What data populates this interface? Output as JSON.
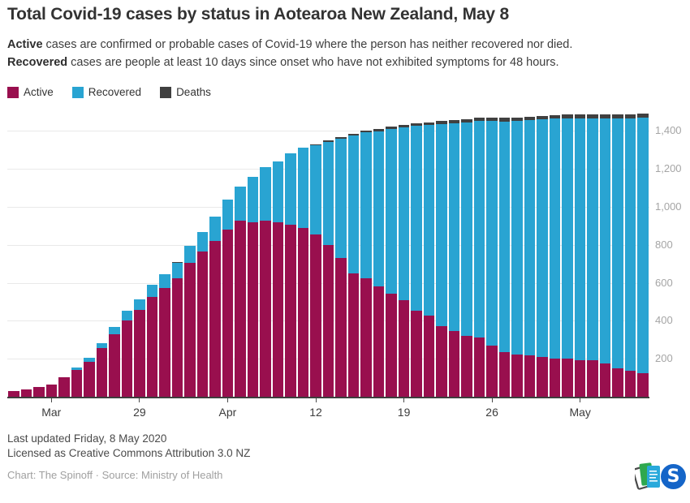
{
  "header": {
    "title": "Total Covid-19 cases by status in Aotearoa New Zealand, May 8",
    "description": [
      {
        "bold": "Active",
        "rest": " cases are confirmed or probable cases of Covid-19 where the person has neither recovered nor died."
      },
      {
        "bold": "Recovered",
        "rest": " cases are people at least 10 days since onset who have not exhibited symptoms for 48 hours."
      }
    ]
  },
  "legend": {
    "items": [
      {
        "label": "Active",
        "color": "#990f4e"
      },
      {
        "label": "Recovered",
        "color": "#29a4d2"
      },
      {
        "label": "Deaths",
        "color": "#404040"
      }
    ]
  },
  "chart_data": {
    "type": "bar",
    "stacked": true,
    "title": "Total Covid-19 cases by status in Aotearoa New Zealand, May 8",
    "x": [
      "Mar 19",
      "Mar 20",
      "Mar 21",
      "Mar 22",
      "Mar 23",
      "Mar 24",
      "Mar 25",
      "Mar 26",
      "Mar 27",
      "Mar 28",
      "Mar 29",
      "Mar 30",
      "Mar 31",
      "Apr 1",
      "Apr 2",
      "Apr 3",
      "Apr 4",
      "Apr 5",
      "Apr 6",
      "Apr 7",
      "Apr 8",
      "Apr 9",
      "Apr 10",
      "Apr 11",
      "Apr 12",
      "Apr 13",
      "Apr 14",
      "Apr 15",
      "Apr 16",
      "Apr 17",
      "Apr 18",
      "Apr 19",
      "Apr 20",
      "Apr 21",
      "Apr 22",
      "Apr 23",
      "Apr 24",
      "Apr 25",
      "Apr 26",
      "Apr 27",
      "Apr 28",
      "Apr 29",
      "Apr 30",
      "May 1",
      "May 2",
      "May 3",
      "May 4",
      "May 5",
      "May 6",
      "May 7",
      "May 8"
    ],
    "series": [
      {
        "name": "Active",
        "color": "#990f4e",
        "values": [
          28,
          39,
          52,
          66,
          102,
          143,
          183,
          256,
          331,
          401,
          457,
          525,
          572,
          625,
          704,
          764,
          822,
          882,
          929,
          918,
          927,
          921,
          908,
          888,
          855,
          798,
          729,
          649,
          622,
          582,
          544,
          507,
          454,
          426,
          372,
          345,
          321,
          310,
          271,
          236,
          224,
          216,
          208,
          202,
          201,
          191,
          191,
          176,
          151,
          136,
          122
        ]
      },
      {
        "name": "Recovered",
        "color": "#29a4d2",
        "values": [
          0,
          0,
          0,
          0,
          0,
          12,
          22,
          27,
          37,
          50,
          56,
          63,
          74,
          82,
          92,
          103,
          127,
          156,
          176,
          241,
          282,
          317,
          373,
          422,
          471,
          546,
          628,
          728,
          770,
          816,
          867,
          912,
          974,
          1006,
          1065,
          1095,
          1123,
          1142,
          1180,
          1214,
          1229,
          1241,
          1252,
          1263,
          1266,
          1276,
          1276,
          1292,
          1316,
          1332,
          1347
        ]
      },
      {
        "name": "Deaths",
        "color": "#404040",
        "values": [
          0,
          0,
          0,
          0,
          0,
          0,
          0,
          0,
          0,
          0,
          1,
          1,
          1,
          1,
          1,
          1,
          1,
          1,
          1,
          1,
          1,
          1,
          2,
          2,
          4,
          5,
          9,
          9,
          9,
          11,
          11,
          12,
          12,
          13,
          14,
          16,
          17,
          18,
          18,
          19,
          19,
          19,
          19,
          20,
          20,
          20,
          20,
          20,
          21,
          21,
          21
        ]
      }
    ],
    "ylim": [
      0,
      1500
    ],
    "yticks": [
      200,
      400,
      600,
      800,
      1000,
      1200,
      1400
    ],
    "ytick_labels": [
      "200",
      "400",
      "600",
      "800",
      "1,000",
      "1,200",
      "1,400"
    ],
    "xticks": [
      {
        "index": 3,
        "label": "Mar"
      },
      {
        "index": 10,
        "label": "29"
      },
      {
        "index": 17,
        "label": "Apr"
      },
      {
        "index": 24,
        "label": "12"
      },
      {
        "index": 31,
        "label": "19"
      },
      {
        "index": 38,
        "label": "26"
      },
      {
        "index": 45,
        "label": "May"
      }
    ],
    "grid": "horizontal",
    "legend_position": "top-left",
    "y_axis_side": "right"
  },
  "footer": {
    "updated": "Last updated Friday, 8 May 2020",
    "license": "Licensed as Creative Commons Attribution 3.0 NZ",
    "credit": "Chart: The Spinoff · Source: Ministry of Health"
  },
  "logos": {
    "cards_logo": "stacked-cards-logo",
    "cards_colors": {
      "back": "#ffffff",
      "back_stroke": "#4a4a4a",
      "middle": "#2fa84f",
      "front": "#29a9db"
    },
    "spinoff_logo": "the-spinoff-logo",
    "spinoff_letter": "S",
    "spinoff_color": "#1565c8"
  }
}
